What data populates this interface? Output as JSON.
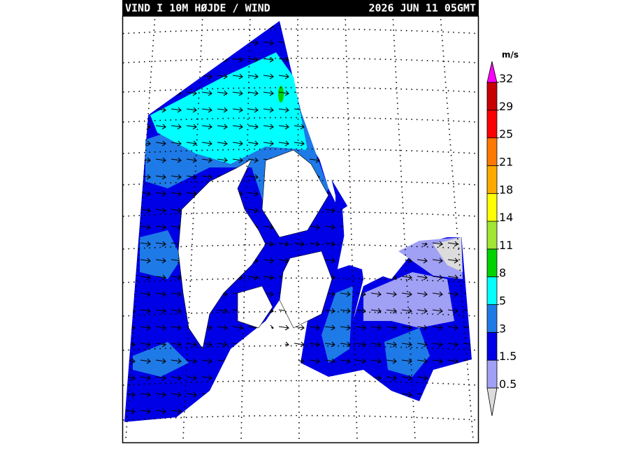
{
  "header": {
    "title": "VIND I 10M HØJDE / WIND",
    "timestamp": "2026 JUN 11 05GMT"
  },
  "colorbar": {
    "unit": "m/s",
    "levels": [
      0.5,
      1.5,
      3,
      5,
      8,
      11,
      14,
      18,
      21,
      25,
      29,
      32
    ],
    "below_color": "#dcdcdc",
    "colors": [
      "#a0a0f5",
      "#0000e6",
      "#1e7ae6",
      "#00ffff",
      "#00d200",
      "#a0e632",
      "#ffff00",
      "#ffaa00",
      "#ff7800",
      "#ff0000",
      "#c80000"
    ],
    "above_color": "#ff00ff"
  }
}
